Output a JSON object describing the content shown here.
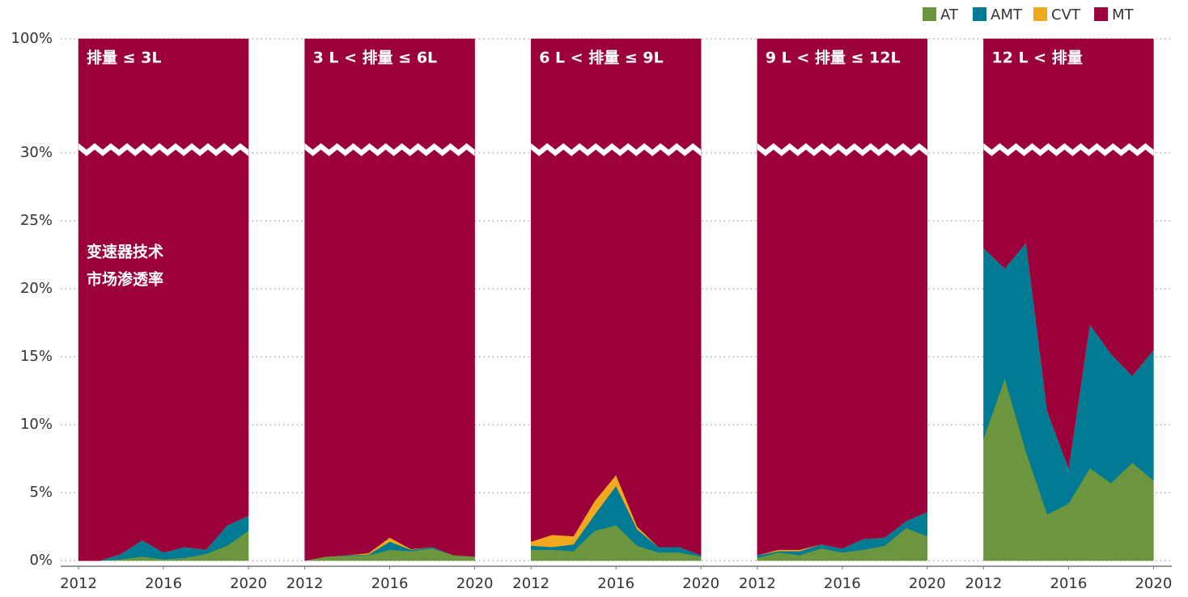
{
  "chart_data": {
    "type": "area",
    "stacked": true,
    "ylim": [
      0,
      100
    ],
    "axis_break": 30,
    "yticks": [
      {
        "value": 0,
        "label": "0%"
      },
      {
        "value": 5,
        "label": "5%"
      },
      {
        "value": 10,
        "label": "10%"
      },
      {
        "value": 15,
        "label": "15%"
      },
      {
        "value": 20,
        "label": "20%"
      },
      {
        "value": 25,
        "label": "25%"
      },
      {
        "value": 30,
        "label": "30%"
      },
      {
        "value": 100,
        "label": "100%"
      }
    ],
    "grid": true,
    "x": [
      2012,
      2013,
      2014,
      2015,
      2016,
      2017,
      2018,
      2019,
      2020
    ],
    "xlim": [
      2012,
      2020
    ],
    "xticks": [
      2012,
      2016,
      2020
    ],
    "legend": "top-right",
    "annotation": [
      "变速器技术",
      "市场渗透率"
    ],
    "series": [
      {
        "name": "AT",
        "color": "#6b963d"
      },
      {
        "name": "AMT",
        "color": "#007b93"
      },
      {
        "name": "CVT",
        "color": "#f0a81c"
      },
      {
        "name": "MT",
        "color": "#9c003a"
      }
    ],
    "panels": [
      {
        "title": "排量 ≤ 3L",
        "values": [
          [
            0,
            0,
            0.1,
            0.3,
            0.1,
            0.2,
            0.5,
            1.1,
            2.2
          ],
          [
            0,
            0,
            0.4,
            1.2,
            0.5,
            0.8,
            0.3,
            1.5,
            1.1
          ],
          [
            0,
            0,
            0,
            0,
            0,
            0,
            0,
            0,
            0
          ],
          [
            100,
            100,
            99.5,
            98.5,
            99.4,
            99,
            99.2,
            97.4,
            96.7
          ]
        ]
      },
      {
        "title": "3 L < 排量 ≤ 6L",
        "values": [
          [
            0,
            0.3,
            0.35,
            0.4,
            0.8,
            0.7,
            0.9,
            0.4,
            0.3
          ],
          [
            0,
            0,
            0.05,
            0.05,
            0.6,
            0.1,
            0.1,
            0,
            0
          ],
          [
            0,
            0,
            0,
            0.1,
            0.3,
            0.05,
            0,
            0,
            0
          ],
          [
            100,
            99.7,
            99.6,
            99.45,
            98.3,
            99.15,
            99,
            99.6,
            99.7
          ]
        ]
      },
      {
        "title": "6 L < 排量 ≤ 9L",
        "values": [
          [
            0.8,
            0.8,
            0.7,
            2.2,
            2.6,
            1.1,
            0.6,
            0.6,
            0.3
          ],
          [
            0.3,
            0.2,
            0.5,
            1.2,
            2.9,
            1.2,
            0.4,
            0.4,
            0.1
          ],
          [
            0.3,
            0.9,
            0.6,
            1.0,
            0.8,
            0.2,
            0,
            0,
            0
          ],
          [
            98.6,
            98.1,
            98.2,
            95.6,
            93.7,
            97.5,
            99,
            99,
            99.6
          ]
        ]
      },
      {
        "title": "9 L < 排量 ≤ 12L",
        "values": [
          [
            0.2,
            0.6,
            0.4,
            0.9,
            0.6,
            0.8,
            1.1,
            2.4,
            1.8
          ],
          [
            0.2,
            0.1,
            0.3,
            0.3,
            0.3,
            0.8,
            0.6,
            0.5,
            1.8
          ],
          [
            0,
            0.1,
            0.1,
            0,
            0,
            0,
            0,
            0,
            0
          ],
          [
            99.6,
            99.2,
            99.2,
            98.8,
            99.1,
            98.4,
            98.3,
            97.1,
            96.4
          ]
        ]
      },
      {
        "title": "12 L < 排量",
        "values": [
          [
            9.0,
            13.4,
            8.0,
            3.4,
            4.2,
            6.8,
            5.7,
            7.2,
            5.9
          ],
          [
            14.0,
            8.1,
            15.4,
            7.6,
            2.6,
            10.6,
            9.5,
            6.4,
            9.6
          ],
          [
            0,
            0,
            0,
            0,
            0,
            0,
            0,
            0,
            0
          ],
          [
            77.0,
            78.5,
            76.6,
            89.0,
            93.2,
            82.6,
            84.8,
            86.4,
            84.5
          ]
        ]
      }
    ]
  }
}
